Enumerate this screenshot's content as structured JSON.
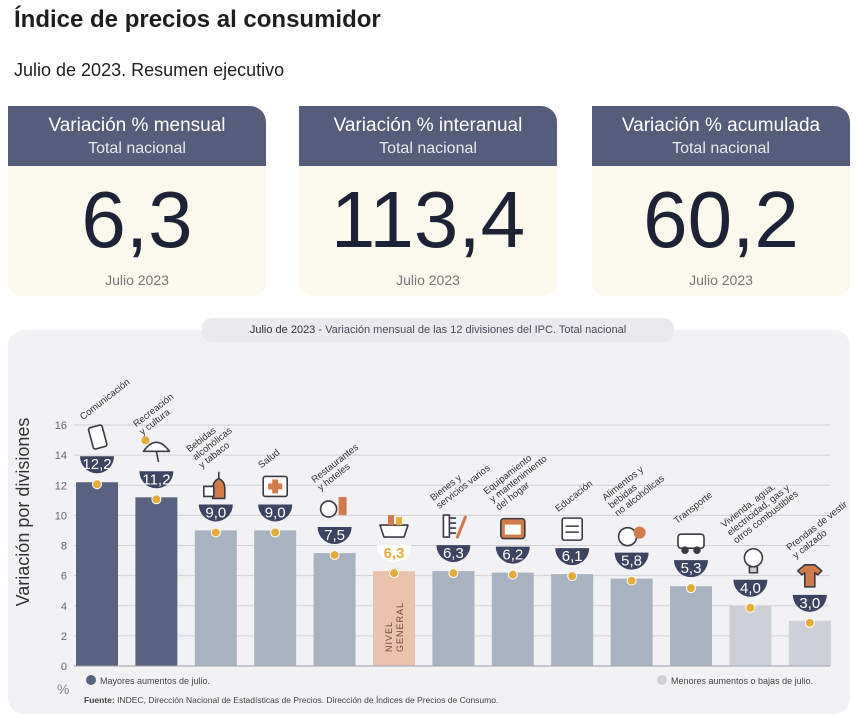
{
  "header": {
    "title": "Índice de precios al consumidor",
    "subtitle": "Julio de 2023. Resumen ejecutivo"
  },
  "kpis": [
    {
      "label": "Variación % mensual",
      "sublabel": "Total nacional",
      "value": "6,3",
      "period": "Julio 2023"
    },
    {
      "label": "Variación % interanual",
      "sublabel": "Total nacional",
      "value": "113,4",
      "period": "Julio 2023"
    },
    {
      "label": "Variación % acumulada",
      "sublabel": "Total nacional",
      "value": "60,2",
      "period": "Julio 2023"
    }
  ],
  "chart_caption": {
    "date": "Julio de 2023",
    "text": " - Variación mensual de las 12 divisiones del IPC. Total nacional"
  },
  "chart_data": {
    "type": "bar",
    "ylabel": "Variación por divisiones",
    "unit_label": "%",
    "ylim": [
      0,
      16
    ],
    "yticks": [
      0,
      2,
      4,
      6,
      8,
      10,
      12,
      14,
      16
    ],
    "grid": true,
    "categories": [
      "Comunicación",
      "Recreación y cultura",
      "Bebidas alcohólicas y tabaco",
      "Salud",
      "Restaurantes y hoteles",
      "NIVEL GENERAL",
      "Bienes y servicios varios",
      "Equipamiento y mantenimiento del hogar",
      "Educación",
      "Alimentos y bebidas no alcohólicas",
      "Transporte",
      "Vivienda, agua, electricidad, gas y otros combustibles",
      "Prendas de vestir y calzado"
    ],
    "values": [
      12.2,
      11.2,
      9.0,
      9.0,
      7.5,
      6.3,
      6.3,
      6.2,
      6.1,
      5.8,
      5.3,
      4.0,
      3.0
    ],
    "value_labels": [
      "12,2",
      "11,2",
      "9,0",
      "9,0",
      "7,5",
      "6,3",
      "6,3",
      "6,2",
      "6,1",
      "5,8",
      "5,3",
      "4,0",
      "3,0"
    ],
    "bar_groups": [
      "mayor",
      "mayor",
      "medio",
      "medio",
      "medio",
      "general",
      "medio",
      "medio",
      "medio",
      "medio",
      "medio",
      "menor",
      "menor"
    ],
    "icons": [
      "smartphone-icon",
      "umbrella-icon",
      "bottle-icon",
      "medical-kit-icon",
      "dining-icon",
      "basket-icon",
      "comb-icon",
      "oven-icon",
      "notebook-icon",
      "food-icon",
      "bus-icon",
      "lightbulb-icon",
      "tshirt-icon"
    ],
    "category_label_lines": [
      [
        "Comunicación"
      ],
      [
        "Recreación",
        "y cultura"
      ],
      [
        "Bebidas",
        "alcohólicas",
        "y tabaco"
      ],
      [
        "Salud"
      ],
      [
        "Restaurantes",
        "y hoteles"
      ],
      [],
      [
        "Bienes y",
        "servicios varios"
      ],
      [
        "Equipamiento",
        "y mantenimiento",
        "del hogar"
      ],
      [
        "Educación"
      ],
      [
        "Alimentos y",
        "bebidas",
        "no alcohólicas"
      ],
      [
        "Transporte"
      ],
      [
        "Vivienda, agua,",
        "electricidad, gas y",
        "otros combustibles"
      ],
      [
        "Prendas de vestir",
        "y calzado"
      ]
    ],
    "general_label_lines": [
      "NIVEL",
      "GENERAL"
    ],
    "legend": [
      {
        "label": "Mayores aumentos de julio.",
        "color": "#59627f"
      },
      {
        "label": "Menores aumentos o bajas de julio.",
        "color": "#cdd0d6"
      }
    ],
    "colors": {
      "mayor": "#59627f",
      "medio": "#a9b2c1",
      "menor": "#cdd0d6",
      "general": "#e9c3ae",
      "marker": "#e3ac3d",
      "badge": "#3d4461",
      "icon_accent": "#d17a4a"
    }
  },
  "source": {
    "label": "Fuente:",
    "text": " INDEC, Dirección Nacional de Estadísticas de Precios. Dirección de Índices de Precios de Consumo."
  }
}
